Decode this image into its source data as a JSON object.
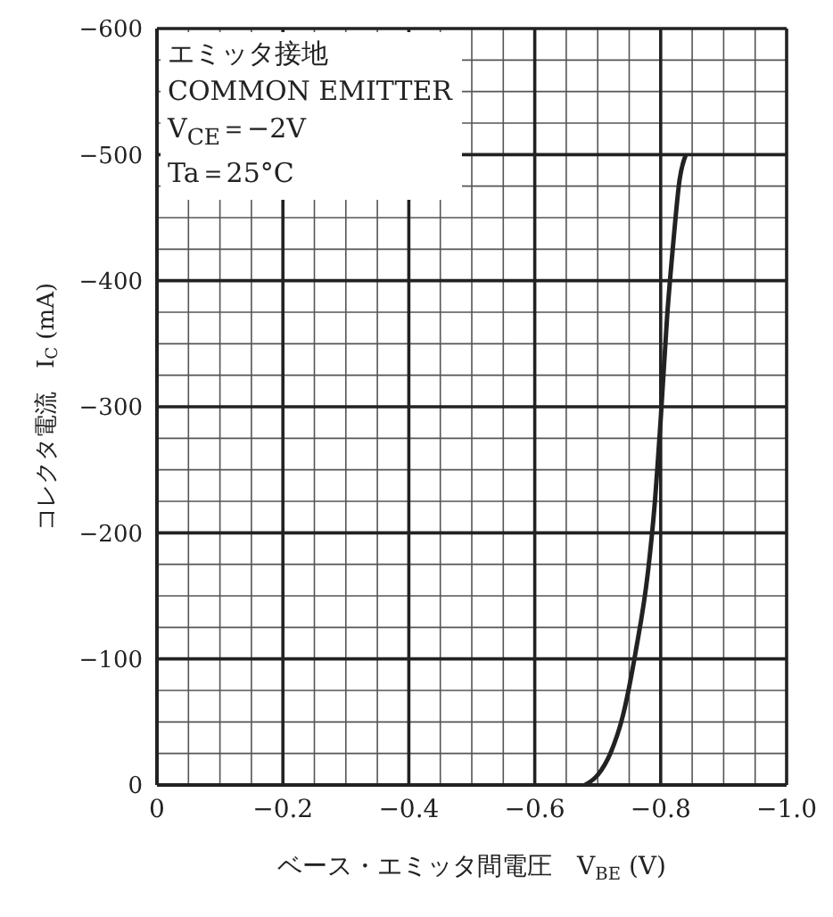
{
  "chart_data": {
    "type": "line",
    "xlabel": "ベース・エミッタ間電圧　V$_{BE}$ (V)",
    "ylabel": "コレクタ電流　I$_{C}$ (mA)",
    "annotations": [
      "エミッタ接地",
      "COMMON EMITTER",
      "V$_{CE}$＝−2V",
      "Ta＝25°C"
    ],
    "x": [
      -0.68,
      -0.7,
      -0.72,
      -0.74,
      -0.76,
      -0.78,
      -0.79,
      -0.8,
      -0.81,
      -0.82,
      -0.83,
      -0.84
    ],
    "series": [
      {
        "color": "#222222",
        "values": [
          0,
          -8,
          -25,
          -55,
          -105,
          -170,
          -220,
          -290,
          -370,
          -430,
          -480,
          -500
        ]
      }
    ],
    "xlim": [
      0,
      -1.0
    ],
    "xticks": [
      0,
      {
        "value": -0.05,
        "label": null
      },
      {
        "value": -0.1,
        "label": null
      },
      {
        "value": -0.15,
        "label": null
      },
      -0.2,
      {
        "value": -0.25,
        "label": null
      },
      {
        "value": -0.3,
        "label": null
      },
      {
        "value": -0.35,
        "label": null
      },
      -0.4,
      {
        "value": -0.45,
        "label": null
      },
      {
        "value": -0.5,
        "label": null
      },
      {
        "value": -0.55,
        "label": null
      },
      -0.6,
      {
        "value": -0.65,
        "label": null
      },
      {
        "value": -0.7,
        "label": null
      },
      {
        "value": -0.75,
        "label": null
      },
      -0.8,
      {
        "value": -0.85,
        "label": null
      },
      {
        "value": -0.9,
        "label": null
      },
      {
        "value": -0.95,
        "label": null
      },
      {
        "value": -1.0,
        "label": "−1.0"
      }
    ],
    "ylim": [
      0,
      -600
    ],
    "yticks": [
      0,
      {
        "value": -25,
        "label": null
      },
      {
        "value": -50,
        "label": null
      },
      {
        "value": -75,
        "label": null
      },
      -100,
      {
        "value": -125,
        "label": null
      },
      {
        "value": -150,
        "label": null
      },
      {
        "value": -175,
        "label": null
      },
      -200,
      {
        "value": -225,
        "label": null
      },
      {
        "value": -250,
        "label": null
      },
      {
        "value": -275,
        "label": null
      },
      -300,
      {
        "value": -325,
        "label": null
      },
      {
        "value": -350,
        "label": null
      },
      {
        "value": -375,
        "label": null
      },
      -400,
      {
        "value": -425,
        "label": null
      },
      {
        "value": -450,
        "label": null
      },
      {
        "value": -475,
        "label": null
      },
      -500,
      {
        "value": -525,
        "label": null
      },
      {
        "value": -550,
        "label": null
      },
      {
        "value": -575,
        "label": null
      },
      -600
    ],
    "grid": true,
    "marker": "none",
    "line_style": "solid"
  }
}
